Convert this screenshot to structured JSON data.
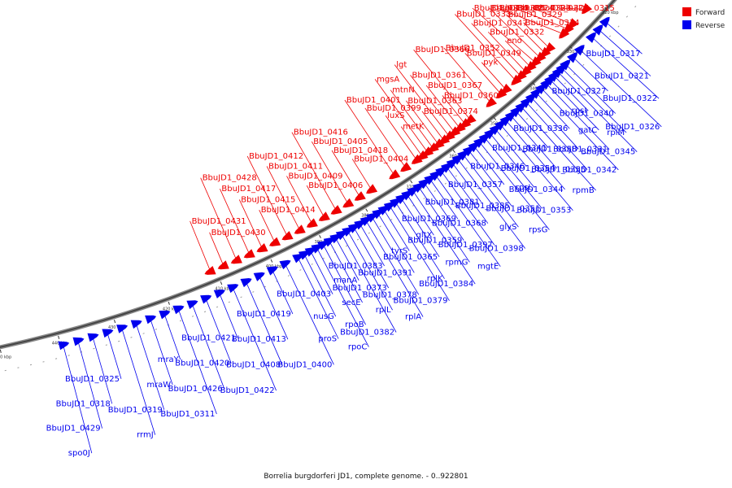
{
  "caption": "Borrelia burgdorferi JD1, complete genome. - 0..922801",
  "legend": [
    {
      "label": "Forward",
      "color": "#ee0000"
    },
    {
      "label": "Reverse",
      "color": "#0000ee"
    }
  ],
  "ticks": [
    {
      "text": "320 kbp",
      "p": 0.0
    },
    {
      "text": "330 kbp",
      "p": 0.0769
    },
    {
      "text": "340 kbp",
      "p": 0.1538
    },
    {
      "text": "350 kbp",
      "p": 0.2308
    },
    {
      "text": "360 kbp",
      "p": 0.3077
    },
    {
      "text": "370 kbp",
      "p": 0.3846
    },
    {
      "text": "380 kbp",
      "p": 0.4615
    },
    {
      "text": "390 kbp",
      "p": 0.5385
    },
    {
      "text": "400 kbp",
      "p": 0.6154
    },
    {
      "text": "410 kbp",
      "p": 0.6923
    },
    {
      "text": "420 kbp",
      "p": 0.7692
    },
    {
      "text": "430 kbp",
      "p": 0.8462
    },
    {
      "text": "440 kbp",
      "p": 0.9231
    },
    {
      "text": "450 kbp",
      "p": 1.0
    }
  ],
  "reverse_genes": [
    {
      "text": "BbuJD1_0317",
      "p": 0.015
    },
    {
      "text": "BbuJD1_0321",
      "p": 0.03
    },
    {
      "text": "BbuJD1_0322",
      "p": 0.045
    },
    {
      "text": "BbuJD1_0326",
      "p": 0.07
    },
    {
      "text": "BbuJD1_0327",
      "p": 0.085
    },
    {
      "text": "BbuJD1_0340",
      "p": 0.1
    },
    {
      "text": "rplM",
      "p": 0.108
    },
    {
      "text": "BbuJD1_0345",
      "p": 0.116
    },
    {
      "text": "rpsI",
      "p": 0.124
    },
    {
      "text": "gatC",
      "p": 0.132
    },
    {
      "text": "BbuJD1_0331",
      "p": 0.14
    },
    {
      "text": "BbuJD1_0342",
      "p": 0.15
    },
    {
      "text": "BbuJD1_0336",
      "p": 0.16
    },
    {
      "text": "BbuJD1_0358",
      "p": 0.17
    },
    {
      "text": "BbuJD1_0355",
      "p": 0.18
    },
    {
      "text": "rpmB",
      "p": 0.19
    },
    {
      "text": "BbuJD1_0341",
      "p": 0.2
    },
    {
      "text": "BbuJD1_0354",
      "p": 0.21
    },
    {
      "text": "BbuJD1_0344",
      "p": 0.22
    },
    {
      "text": "BbuJD1_0353",
      "p": 0.23
    },
    {
      "text": "BbuJD1_0346",
      "p": 0.24
    },
    {
      "text": "rpsL",
      "p": 0.25
    },
    {
      "text": "BbuJD1_0351",
      "p": 0.26
    },
    {
      "text": "rpsG",
      "p": 0.27
    },
    {
      "text": "BbuJD1_0357",
      "p": 0.28
    },
    {
      "text": "BbuJD1_0385",
      "p": 0.29
    },
    {
      "text": "glyS",
      "p": 0.3
    },
    {
      "text": "BbuJD1_0398",
      "p": 0.31
    },
    {
      "text": "BbuJD1_0381",
      "p": 0.32
    },
    {
      "text": "BbuJD1_0368",
      "p": 0.33
    },
    {
      "text": "BbuJD1_0397",
      "p": 0.34
    },
    {
      "text": "mgtE",
      "p": 0.35
    },
    {
      "text": "BbuJD1_0369",
      "p": 0.36
    },
    {
      "text": "BbuJD1_0359",
      "p": 0.37
    },
    {
      "text": "rpmG",
      "p": 0.38
    },
    {
      "text": "BbuJD1_0384",
      "p": 0.39
    },
    {
      "text": "gltX",
      "p": 0.4
    },
    {
      "text": "BbuJD1_0365",
      "p": 0.41
    },
    {
      "text": "rplK",
      "p": 0.42
    },
    {
      "text": "BbuJD1_0379",
      "p": 0.43
    },
    {
      "text": "tyrS",
      "p": 0.44
    },
    {
      "text": "BbuJD1_0391",
      "p": 0.45
    },
    {
      "text": "BbuJD1_0378",
      "p": 0.46
    },
    {
      "text": "rplA",
      "p": 0.47
    },
    {
      "text": "BbuJD1_0383",
      "p": 0.48
    },
    {
      "text": "BbuJD1_0373",
      "p": 0.49
    },
    {
      "text": "rplL",
      "p": 0.5
    },
    {
      "text": "BbuJD1_0382",
      "p": 0.51
    },
    {
      "text": "manA",
      "p": 0.52
    },
    {
      "text": "secE",
      "p": 0.53
    },
    {
      "text": "rpoB",
      "p": 0.54
    },
    {
      "text": "rpoC",
      "p": 0.55
    },
    {
      "text": "BbuJD1_0403",
      "p": 0.56
    },
    {
      "text": "nusG",
      "p": 0.57
    },
    {
      "text": "proS",
      "p": 0.58
    },
    {
      "text": "BbuJD1_0400",
      "p": 0.6
    },
    {
      "text": "BbuJD1_0419",
      "p": 0.62
    },
    {
      "text": "BbuJD1_0413",
      "p": 0.64
    },
    {
      "text": "BbuJD1_0408",
      "p": 0.66
    },
    {
      "text": "BbuJD1_0422",
      "p": 0.68
    },
    {
      "text": "BbuJD1_0421",
      "p": 0.7
    },
    {
      "text": "BbuJD1_0420",
      "p": 0.72
    },
    {
      "text": "BbuJD1_0426",
      "p": 0.74
    },
    {
      "text": "BbuJD1_0311",
      "p": 0.76
    },
    {
      "text": "mraY",
      "p": 0.78
    },
    {
      "text": "mraW",
      "p": 0.8
    },
    {
      "text": "BbuJD1_0319",
      "p": 0.82
    },
    {
      "text": "rrmJ",
      "p": 0.84
    },
    {
      "text": "BbuJD1_0325",
      "p": 0.86
    },
    {
      "text": "BbuJD1_0318",
      "p": 0.88
    },
    {
      "text": "BbuJD1_0429",
      "p": 0.9
    },
    {
      "text": "spo0J",
      "p": 0.92
    }
  ],
  "forward_genes": [
    {
      "text": "BbuJD1_0315",
      "p": 0.02
    },
    {
      "text": "BbuJD1_0328",
      "p": 0.05
    },
    {
      "text": "BbuJD1_0323",
      "p": 0.06
    },
    {
      "text": "BbuJD1_0324",
      "p": 0.07
    },
    {
      "text": "BbuJD1_0334",
      "p": 0.1
    },
    {
      "text": "BbuJD1_0329",
      "p": 0.11
    },
    {
      "text": "BbuJD1_0335",
      "p": 0.12
    },
    {
      "text": "BbuJD1_0330",
      "p": 0.13
    },
    {
      "text": "eno",
      "p": 0.14
    },
    {
      "text": "BbuJD1_0332",
      "p": 0.15
    },
    {
      "text": "BbuJD1_0347",
      "p": 0.16
    },
    {
      "text": "BbuJD1_0333",
      "p": 0.17
    },
    {
      "text": "pyk",
      "p": 0.19
    },
    {
      "text": "BbuJD1_0349",
      "p": 0.2
    },
    {
      "text": "BbuJD1_0352",
      "p": 0.22
    },
    {
      "text": "BbuJD1_0366",
      "p": 0.26
    },
    {
      "text": "BbuJD1_0360",
      "p": 0.27
    },
    {
      "text": "BbuJD1_0367",
      "p": 0.28
    },
    {
      "text": "BbuJD1_0361",
      "p": 0.29
    },
    {
      "text": "lgt",
      "p": 0.3
    },
    {
      "text": "BbuJD1_0374",
      "p": 0.31
    },
    {
      "text": "BbuJD1_0363",
      "p": 0.32
    },
    {
      "text": "mtnN",
      "p": 0.33
    },
    {
      "text": "mgsA",
      "p": 0.34
    },
    {
      "text": "metK",
      "p": 0.35
    },
    {
      "text": "luxS",
      "p": 0.36
    },
    {
      "text": "BbuJD1_0399",
      "p": 0.38
    },
    {
      "text": "BbuJD1_0401",
      "p": 0.4
    },
    {
      "text": "BbuJD1_0404",
      "p": 0.44
    },
    {
      "text": "BbuJD1_0418",
      "p": 0.46
    },
    {
      "text": "BbuJD1_0405",
      "p": 0.48
    },
    {
      "text": "BbuJD1_0416",
      "p": 0.5
    },
    {
      "text": "BbuJD1_0406",
      "p": 0.52
    },
    {
      "text": "BbuJD1_0409",
      "p": 0.54
    },
    {
      "text": "BbuJD1_0411",
      "p": 0.56
    },
    {
      "text": "BbuJD1_0412",
      "p": 0.58
    },
    {
      "text": "BbuJD1_0414",
      "p": 0.6
    },
    {
      "text": "BbuJD1_0415",
      "p": 0.62
    },
    {
      "text": "BbuJD1_0417",
      "p": 0.64
    },
    {
      "text": "BbuJD1_0428",
      "p": 0.66
    },
    {
      "text": "BbuJD1_0430",
      "p": 0.68
    },
    {
      "text": "BbuJD1_0431",
      "p": 0.7
    }
  ]
}
